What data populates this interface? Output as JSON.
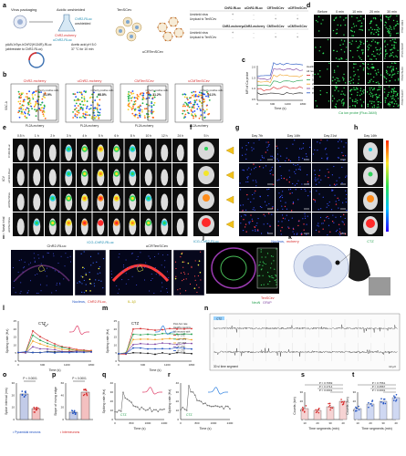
{
  "panel_letters": [
    "a",
    "b",
    "c",
    "d",
    "e",
    "f",
    "g",
    "h",
    "i",
    "j",
    "k",
    "l",
    "m",
    "n",
    "o",
    "p",
    "q",
    "r",
    "s",
    "t"
  ],
  "colors": {
    "cyan": "#1a8ab0",
    "red": "#d62a2a",
    "green": "#1f9e4a",
    "orange": "#f0a020",
    "purple": "#7b3fa0",
    "blue": "#1d4fc0",
    "gray": "#8a8a8a",
    "black": "#111111",
    "dark": "#050505"
  },
  "a": {
    "virus_packaging": "Virus packaging",
    "acidic_unshielded": "Acidic unshielded",
    "tensicev": "TenSCev",
    "chr2_rluc": "ChR2-RLuc",
    "unshielded": "unshielded",
    "chr2_mcherry": "ChR2-mcherry",
    "plasmid": "pAAV-hSyn-hChR2(H134R)-RLuc",
    "plasmid_abbrev": "(abbreviate to ChR2-RLuc)",
    "acetic_acid": "Acetic acid pH 5.0",
    "temperature": "37 °C for 10 min",
    "uchr2_rluc": "uChR2-RLuc",
    "ucrtensicev": "uCRTenSCev",
    "table": {
      "headers": [
        "",
        "ChR2-RLuc",
        "uChR2-RLuc",
        "CRTenSCev",
        "uCRTenSCev"
      ],
      "row1": [
        "Unshield virus",
        "+",
        "-",
        "-",
        "-"
      ],
      "row2": [
        "Unpload to TenSCev",
        "-",
        "-",
        "+",
        "+"
      ],
      "headers2": [
        "",
        "ChR2-mcherry",
        "uChR2-mcherry",
        "CMTenSCev",
        "uCMTenSCev"
      ],
      "row3": [
        "Unshield virus",
        "+",
        "-",
        "-",
        "-"
      ],
      "row4": [
        "Unpload to TenSCev",
        "-",
        "-",
        "+",
        "+"
      ]
    }
  },
  "b": {
    "panels": [
      {
        "title": "ChR2-mcherry",
        "positive": "mcherry positive cells",
        "value": "51.9%"
      },
      {
        "title": "uChR2-mcherry",
        "positive": "mcherry positive cells",
        "value": "28.8%"
      },
      {
        "title": "CMTenSCev",
        "positive": "mcherry positive cells",
        "value": "31.2%"
      },
      {
        "title": "uCMTenSCev",
        "positive": "mcherry positive cells",
        "value": "54.1%"
      }
    ],
    "xlabel": "PL2A-mcherry",
    "ylabel": "SSC-A"
  },
  "c": {
    "ylabel": "MFI of Ca probe",
    "xlabel": "Time (s)",
    "xticks": [
      "0",
      "600",
      "1200",
      "1800"
    ],
    "yticks": [
      "0.5",
      "1.0",
      "1.5",
      "2.0"
    ],
    "legend": [
      "Healthy neurons",
      "All neurons with",
      "5° CTZ",
      "10° CTZ",
      "20° CTZ",
      "4° CTZ",
      "8° CTZ"
    ]
  },
  "d": {
    "times": [
      "Before",
      "0 min",
      "10 min",
      "20 min",
      "30 min"
    ],
    "caption": "Ca ion probe (Fluo-3AM)",
    "rows": [
      "ChR2-RLuc",
      "uChR2-RLuc",
      "CRTenSCev",
      "uCRTenSCev"
    ]
  },
  "e": {
    "times": [
      "0.5 h",
      "1 h",
      "2 h",
      "3 h",
      "4 h",
      "5 h",
      "6 h",
      "8 h",
      "10 h",
      "12 h",
      "24 h"
    ],
    "side_labels": [
      "ChR2-RLuc",
      "uChR2-RLuc",
      "uCRTenSCev",
      "uCRTenSCev"
    ],
    "route_icv": "ICV",
    "route_nasal": "Nasal inhal",
    "caption": "ICG-ChR2-RLuc"
  },
  "f": {
    "time": "5 h",
    "caption": "ICG-ChR2-RLuc"
  },
  "g": {
    "times": [
      "Day 7th",
      "Day 14th",
      "Day 21st"
    ],
    "caption_nucleus": "Nucleus,",
    "caption_mcherry": "mcherry"
  },
  "h": {
    "time": "Day 14th",
    "caption": "CTZ"
  },
  "i": {
    "left_title": "ChR2-RLuc",
    "right_title": "uCRTenSCev",
    "caption_nucleus": "Nucleus,",
    "caption_rluc": "ChR2-RLuc,",
    "caption_il": "IL-1β"
  },
  "j": {
    "label_ten": "TenSCev",
    "label_neun": "NeuN",
    "label_gfap": "GFAP"
  },
  "l": {
    "ylabel": "Spiking rate (Hz)",
    "xlabel": "Time (s)",
    "xticks": [
      "0",
      "600",
      "1200",
      "1800"
    ],
    "yticks": [
      "0",
      "5",
      "10",
      "15",
      "20",
      "25"
    ],
    "ctz": "CTZ"
  },
  "m": {
    "ylabel": "Spiking rate (Hz)",
    "xlabel": "Time (s)",
    "xticks": [
      "0",
      "600",
      "1200",
      "1800"
    ],
    "yticks": [
      "0",
      "5",
      "10",
      "15",
      "20",
      "25"
    ],
    "ctz": "CTZ",
    "legend": [
      "Post-hoc rate",
      "Healthy neurons",
      "All neurons with",
      "5° CTZ",
      "10° CTZ",
      "20° CTZ",
      "4° CTZ",
      "8° CTZ"
    ]
  },
  "n": {
    "ctz_label": "CTZ",
    "segment_label": "30 s/ time segment",
    "scale": "10 μV"
  },
  "o": {
    "ylabel": "Spike interval (ms)",
    "pvalue": "P < 0.0001",
    "legend": "• Pyramidal neurons",
    "yticks": [
      "0",
      "10",
      "20",
      "30"
    ]
  },
  "p": {
    "ylabel": "Slope of rising edge",
    "pvalue": "P < 0.0001",
    "legend": "• Interneurons",
    "yticks": [
      "0",
      "20",
      "40",
      "60"
    ]
  },
  "q": {
    "ylabel": "Spiking rate (Hz)",
    "xlabel": "Time (s)",
    "xticks": [
      "0",
      "800",
      "1600",
      "2400"
    ],
    "yticks": [
      "0",
      "10",
      "20",
      "30",
      "40"
    ],
    "ctz": "CTZ"
  },
  "r": {
    "ylabel": "Spiking rate (Hz)",
    "xlabel": "Time (s)",
    "xticks": [
      "0",
      "800",
      "1600",
      "2400"
    ],
    "yticks": [
      "0",
      "10",
      "20",
      "30",
      "40"
    ],
    "ctz": "CTZ"
  },
  "s": {
    "ylabel": "Counts (bin)",
    "xlabel": "Time segments (min)",
    "xticks": [
      "10",
      "20",
      "30",
      "40"
    ],
    "yticks": [
      "0",
      "10",
      "20",
      "30"
    ],
    "pvalues": [
      "P = 0.7669",
      "P = 0.1714",
      "P = 0.0001"
    ]
  },
  "t": {
    "ylabel": "Counts (bin)",
    "xlabel": "Time segments (min)",
    "xticks": [
      "10",
      "20",
      "30",
      "40"
    ],
    "yticks": [
      "0",
      "10",
      "20",
      "30"
    ],
    "pvalues": [
      "P = 0.7561",
      "P = 0.0567",
      "P = 0.0001"
    ]
  }
}
